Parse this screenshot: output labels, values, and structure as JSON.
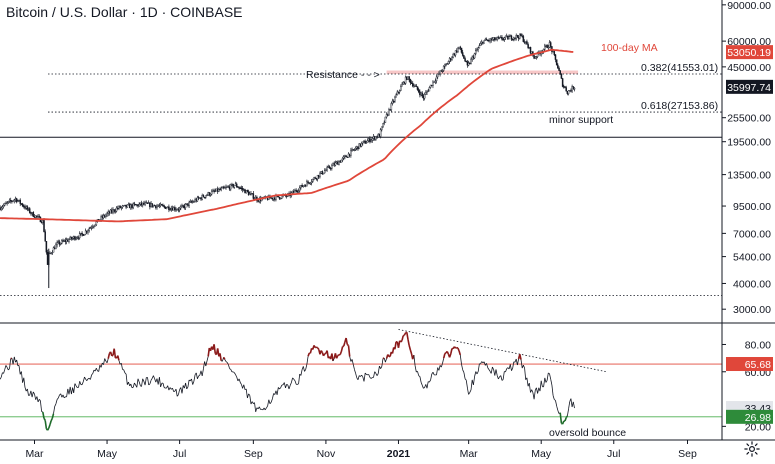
{
  "title": "Bitcoin / U.S. Dollar · 1D · COINBASE",
  "chart_data": [
    {
      "type": "candlestick",
      "panel": "price",
      "y_scale": "log",
      "ylim": [
        2600,
        95000
      ],
      "y_ticks": [
        "90000.00",
        "60000.00",
        "45000.00",
        "25500.00",
        "19500.00",
        "13500.00",
        "9500.00",
        "7000.00",
        "5400.00",
        "4000.00",
        "3000.00"
      ],
      "x_ticks": [
        "Mar",
        "May",
        "Jul",
        "Sep",
        "Nov",
        "2021",
        "Mar",
        "May",
        "Jul",
        "Sep"
      ],
      "x_start": "2020-02-01",
      "x_end": "2021-09-30",
      "price_anchors": [
        {
          "date": "2020-02-01",
          "close": 9350
        },
        {
          "date": "2020-02-14",
          "close": 10300
        },
        {
          "date": "2020-02-28",
          "close": 8700
        },
        {
          "date": "2020-03-08",
          "close": 8000
        },
        {
          "date": "2020-03-12",
          "close": 4900
        },
        {
          "date": "2020-03-13",
          "close": 5500
        },
        {
          "date": "2020-03-20",
          "close": 6200
        },
        {
          "date": "2020-04-10",
          "close": 6900
        },
        {
          "date": "2020-04-30",
          "close": 8600
        },
        {
          "date": "2020-05-10",
          "close": 9300
        },
        {
          "date": "2020-06-01",
          "close": 9700
        },
        {
          "date": "2020-07-01",
          "close": 9200
        },
        {
          "date": "2020-07-27",
          "close": 11000
        },
        {
          "date": "2020-08-17",
          "close": 12000
        },
        {
          "date": "2020-09-05",
          "close": 10200
        },
        {
          "date": "2020-10-01",
          "close": 10700
        },
        {
          "date": "2020-10-21",
          "close": 12800
        },
        {
          "date": "2020-11-15",
          "close": 16000
        },
        {
          "date": "2020-12-01",
          "close": 19000
        },
        {
          "date": "2020-12-16",
          "close": 21000
        },
        {
          "date": "2021-01-08",
          "close": 40000
        },
        {
          "date": "2021-01-22",
          "close": 32000
        },
        {
          "date": "2021-02-10",
          "close": 46000
        },
        {
          "date": "2021-02-21",
          "close": 56000
        },
        {
          "date": "2021-02-28",
          "close": 45000
        },
        {
          "date": "2021-03-13",
          "close": 60000
        },
        {
          "date": "2021-04-14",
          "close": 63500
        },
        {
          "date": "2021-04-25",
          "close": 50000
        },
        {
          "date": "2021-05-08",
          "close": 58000
        },
        {
          "date": "2021-05-19",
          "close": 37000
        },
        {
          "date": "2021-05-23",
          "close": 34000
        },
        {
          "date": "2021-05-29",
          "close": 35997.74
        }
      ],
      "ma_anchors": [
        {
          "date": "2020-02-01",
          "value": 8300
        },
        {
          "date": "2020-03-10",
          "value": 8200
        },
        {
          "date": "2020-05-10",
          "value": 8000
        },
        {
          "date": "2020-06-20",
          "value": 8200
        },
        {
          "date": "2020-08-01",
          "value": 9200
        },
        {
          "date": "2020-09-20",
          "value": 10700
        },
        {
          "date": "2020-10-20",
          "value": 11000
        },
        {
          "date": "2020-11-20",
          "value": 12600
        },
        {
          "date": "2020-12-20",
          "value": 16000
        },
        {
          "date": "2021-01-20",
          "value": 23500
        },
        {
          "date": "2021-02-20",
          "value": 33000
        },
        {
          "date": "2021-03-20",
          "value": 44000
        },
        {
          "date": "2021-04-20",
          "value": 51000
        },
        {
          "date": "2021-05-10",
          "value": 54500
        },
        {
          "date": "2021-05-29",
          "value": 53050.19
        }
      ],
      "series": [
        {
          "name": "100-day MA",
          "color": "#e0473a",
          "last_value": "53050.19"
        }
      ],
      "last_price": "35997.74",
      "annotations": [
        {
          "text": "Resistance - - >",
          "color": "#131722"
        },
        {
          "text": "0.382(41553.01)",
          "value": 41553.01
        },
        {
          "text": "0.618(27153.86)",
          "value": 27153.86
        },
        {
          "text": "minor support"
        }
      ],
      "levels": {
        "resistance_line": 41553.01,
        "support_line": 27153.86,
        "horizontal_solid": 20500,
        "bottom_dotted": 3500,
        "resistance_zone": [
          41553.01,
          43200
        ]
      },
      "badges": [
        {
          "label": "53050.19",
          "color": "#e0473a"
        },
        {
          "label": "35997.74",
          "color": "#131722"
        }
      ]
    },
    {
      "type": "line",
      "panel": "oscillator",
      "ylim": [
        10,
        95
      ],
      "y_ticks": [
        "80.00",
        "60.00",
        "20.00"
      ],
      "levels": {
        "upper": 65.68,
        "lower": 26.98
      },
      "rsi_anchors": [
        {
          "date": "2020-02-01",
          "value": 58
        },
        {
          "date": "2020-02-14",
          "value": 70
        },
        {
          "date": "2020-02-24",
          "value": 45
        },
        {
          "date": "2020-03-05",
          "value": 40
        },
        {
          "date": "2020-03-12",
          "value": 16
        },
        {
          "date": "2020-03-20",
          "value": 40
        },
        {
          "date": "2020-04-10",
          "value": 52
        },
        {
          "date": "2020-04-25",
          "value": 62
        },
        {
          "date": "2020-05-07",
          "value": 75
        },
        {
          "date": "2020-05-20",
          "value": 50
        },
        {
          "date": "2020-06-10",
          "value": 55
        },
        {
          "date": "2020-06-30",
          "value": 44
        },
        {
          "date": "2020-07-20",
          "value": 60
        },
        {
          "date": "2020-07-28",
          "value": 80
        },
        {
          "date": "2020-08-15",
          "value": 60
        },
        {
          "date": "2020-09-05",
          "value": 30
        },
        {
          "date": "2020-09-25",
          "value": 48
        },
        {
          "date": "2020-10-10",
          "value": 55
        },
        {
          "date": "2020-10-22",
          "value": 78
        },
        {
          "date": "2020-11-10",
          "value": 70
        },
        {
          "date": "2020-11-18",
          "value": 82
        },
        {
          "date": "2020-11-27",
          "value": 55
        },
        {
          "date": "2020-12-12",
          "value": 58
        },
        {
          "date": "2020-12-28",
          "value": 78
        },
        {
          "date": "2021-01-08",
          "value": 86
        },
        {
          "date": "2021-01-22",
          "value": 46
        },
        {
          "date": "2021-02-09",
          "value": 70
        },
        {
          "date": "2021-02-20",
          "value": 80
        },
        {
          "date": "2021-03-01",
          "value": 46
        },
        {
          "date": "2021-03-13",
          "value": 68
        },
        {
          "date": "2021-03-28",
          "value": 55
        },
        {
          "date": "2021-04-13",
          "value": 70
        },
        {
          "date": "2021-04-24",
          "value": 42
        },
        {
          "date": "2021-05-08",
          "value": 58
        },
        {
          "date": "2021-05-14",
          "value": 34
        },
        {
          "date": "2021-05-19",
          "value": 22
        },
        {
          "date": "2021-05-22",
          "value": 26
        },
        {
          "date": "2021-05-26",
          "value": 38
        },
        {
          "date": "2021-05-29",
          "value": 33.43
        }
      ],
      "badges": [
        {
          "label": "65.68",
          "color": "#e0473a"
        },
        {
          "label": "33.43",
          "color": "#e3e5ea"
        },
        {
          "label": "26.98",
          "color": "#2e8b3a"
        }
      ],
      "annotations": [
        {
          "text": "oversold bounce"
        }
      ],
      "trendline": [
        {
          "date": "2021-01-01",
          "value": 91
        },
        {
          "date": "2021-06-25",
          "value": 60
        }
      ]
    }
  ],
  "colors": {
    "candle": "#131722",
    "ma": "#e0473a",
    "rsi_line": "#131722",
    "rsi_overbought": "#8b1a1a",
    "rsi_oversold": "#1e6b2a",
    "upper_level": "#e0473a",
    "lower_level": "#4caf50",
    "resistance_zone": "#f4b4b4"
  },
  "icons": {
    "settings": "gear-icon"
  }
}
